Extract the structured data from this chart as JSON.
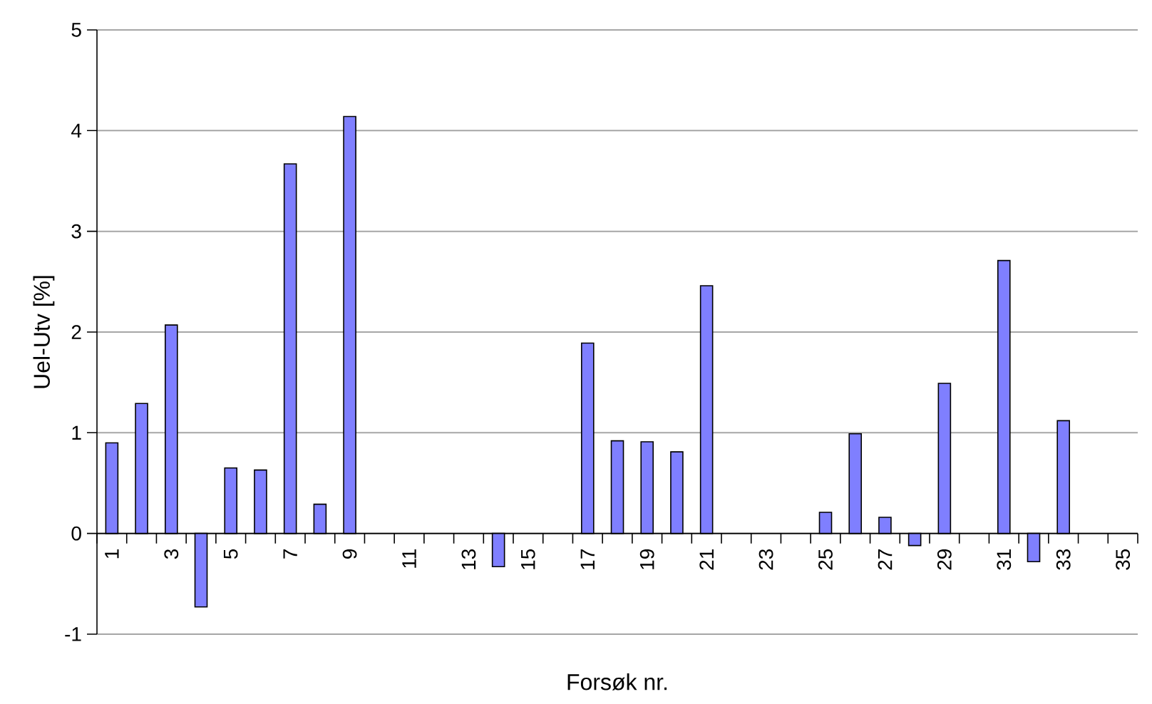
{
  "chart_data": {
    "type": "bar",
    "xlabel": "Forsøk  nr.",
    "ylabel": "Uel-Utv [%]",
    "categories": [
      "1",
      null,
      "3",
      null,
      "5",
      null,
      "7",
      null,
      "9",
      null,
      "11",
      null,
      "13",
      null,
      "15",
      null,
      "17",
      null,
      "19",
      null,
      "21",
      null,
      "23",
      null,
      "25",
      null,
      "27",
      null,
      "29",
      null,
      "31",
      null,
      "33",
      null,
      "35"
    ],
    "values": [
      0.9,
      1.29,
      2.07,
      -0.73,
      0.65,
      0.63,
      3.67,
      0.29,
      4.14,
      null,
      null,
      null,
      null,
      -0.33,
      null,
      null,
      1.89,
      0.92,
      0.91,
      0.81,
      2.46,
      null,
      null,
      null,
      0.21,
      0.99,
      0.16,
      -0.12,
      1.49,
      null,
      2.71,
      -0.28,
      1.12,
      null,
      null
    ],
    "color": "#7f7fff",
    "ylim": [
      -1,
      5
    ],
    "yticks": [
      -1,
      0,
      1,
      2,
      3,
      4,
      5
    ],
    "grid": "y"
  }
}
